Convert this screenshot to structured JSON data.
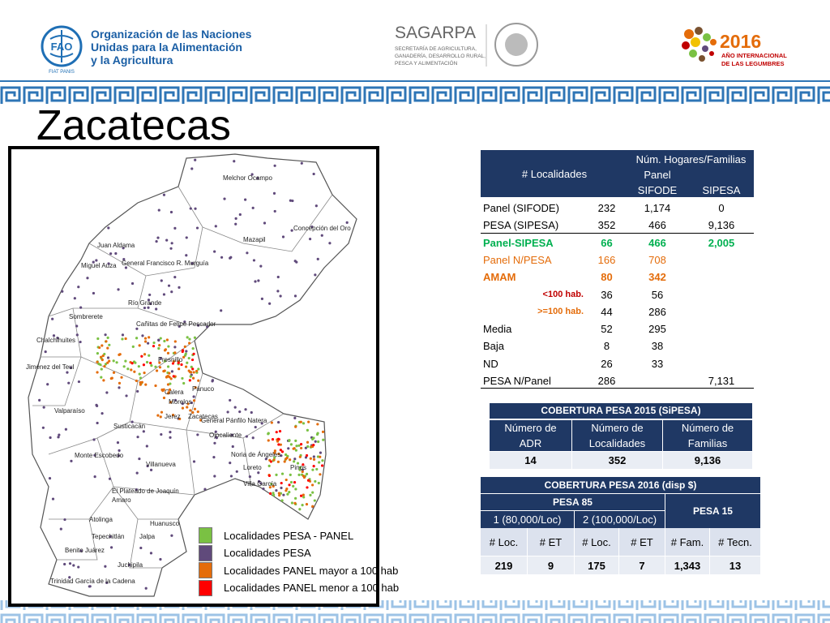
{
  "header": {
    "fao_mark": "FAO",
    "fao_motto": "FIAT PANIS",
    "fao_name": [
      "Organización de las Naciones",
      "Unidas para la Alimentación",
      "y la Agricultura"
    ],
    "sagarpa": "SAGARPA",
    "sagarpa_sub": [
      "SECRETARÍA DE AGRICULTURA,",
      "GANADERÍA, DESARROLLO RURAL,",
      "PESCA Y ALIMENTACIÓN"
    ],
    "year": "2016",
    "year_sub": [
      "AÑO INTERNACIONAL",
      "DE LAS LEGUMBRES"
    ]
  },
  "title": "Zacatecas",
  "map": {
    "labels": [
      "Melchor Ocampo",
      "Mazapil",
      "Concepción del Oro",
      "Juan Aldama",
      "Miguel Auza",
      "General Francisco R. Murguía",
      "Río Grande",
      "Sombrerete",
      "Cañitas de Felipe Pescador",
      "Chalchihuites",
      "Fresnillo",
      "Jiménez del Teul",
      "Calera",
      "Pánuco",
      "Morelos",
      "Valparaíso",
      "Jerez",
      "Zacatecas",
      "General Pánfilo Natera",
      "Susticacán",
      "Ojocaliente",
      "Noria de Ángeles",
      "Monte Escobedo",
      "Loreto",
      "Pinos",
      "Villa García",
      "Villanueva",
      "El Plateado de Joaquín",
      "Amaro",
      "Atolinga",
      "Huanusco",
      "Tepechitlán",
      "Jalpa",
      "Benito Juárez",
      "Juchipila",
      "Trinidad García de la Cadena"
    ],
    "legend": [
      {
        "name": "Localidades PESA - PANEL",
        "color": "#7ac143"
      },
      {
        "name": "Localidades PESA",
        "color": "#604a7b"
      },
      {
        "name": "Localidades PANEL mayor a 100 hab",
        "color": "#e46c0a"
      },
      {
        "name": "Localidades PANEL menor a 100 hab",
        "color": "#ff0000"
      }
    ]
  },
  "table1": {
    "header": {
      "localidades": "# Localidades",
      "hogares": "Núm. Hogares/Familias",
      "panel_sifode": [
        "Panel",
        "SIFODE"
      ],
      "sipesa": "SIPESA"
    },
    "rows": [
      {
        "label": "Panel (SIFODE)",
        "localidades": "232",
        "panel_sifode": "1,174",
        "sipesa": "0"
      },
      {
        "label": "PESA (SIPESA)",
        "localidades": "352",
        "panel_sifode": "466",
        "sipesa": "9,136"
      },
      {
        "label": "Panel-SIPESA",
        "localidades": "66",
        "panel_sifode": "466",
        "sipesa": "2,005"
      },
      {
        "label": "Panel N/PESA",
        "localidades": "166",
        "panel_sifode": "708"
      },
      {
        "label": "AMAM",
        "localidades": "80",
        "panel_sifode": "342"
      },
      {
        "label": "<100 hab.",
        "localidades": "36",
        "panel_sifode": "56"
      },
      {
        "label": ">=100 hab.",
        "localidades": "44",
        "panel_sifode": "286"
      },
      {
        "label": "Media",
        "localidades": "52",
        "panel_sifode": "295"
      },
      {
        "label": "Baja",
        "localidades": "8",
        "panel_sifode": "38"
      },
      {
        "label": "ND",
        "localidades": "26",
        "panel_sifode": "33"
      },
      {
        "label": "PESA N/Panel",
        "localidades": "286",
        "sipesa": "7,131"
      }
    ]
  },
  "table2": {
    "title": "COBERTURA  PESA 2015 (SiPESA)",
    "columns": [
      [
        "Número de",
        "ADR"
      ],
      [
        "Número de",
        "Localidades"
      ],
      [
        "Número de",
        "Familias"
      ]
    ],
    "row": [
      "14",
      "352",
      "9,136"
    ]
  },
  "table3": {
    "title": "COBERTURA PESA 2016 (disp $)",
    "group1": "PESA 85",
    "group2": "PESA 15",
    "sub": [
      "1 (80,000/Loc)",
      "2 (100,000/Loc)"
    ],
    "columns": [
      "# Loc.",
      "# ET",
      "# Loc.",
      "# ET",
      "# Fam.",
      "# Tecn."
    ],
    "row": [
      "219",
      "9",
      "175",
      "7",
      "1,343",
      "13"
    ]
  }
}
